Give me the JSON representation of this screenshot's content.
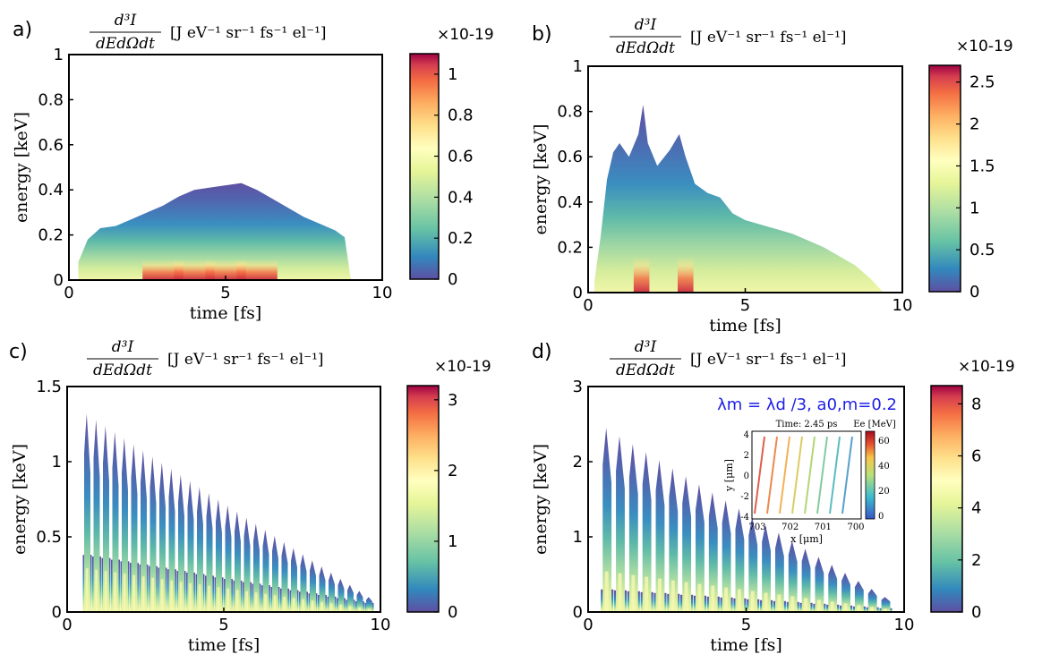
{
  "chart_data": [
    {
      "type": "heatmap",
      "panel_label": "a)",
      "title_frac": {
        "numerator": "d³I",
        "denominator": "dEdΩdt"
      },
      "title": "[J eV⁻¹ sr⁻¹ fs⁻¹ el⁻¹]",
      "xlabel": "time [fs]",
      "ylabel": "energy [keV]",
      "xlim": [
        0,
        10
      ],
      "ylim": [
        0,
        1
      ],
      "xticks": [
        "0",
        "5",
        "10"
      ],
      "yticks": [
        "0",
        "0.2",
        "0.4",
        "0.6",
        "0.8",
        "1"
      ],
      "colorbar": {
        "min": 0,
        "max": 1.1,
        "scale": "×10-19",
        "ticks": [
          "0",
          "0.2",
          "0.4",
          "0.6",
          "0.8",
          "1"
        ]
      },
      "envelope": {
        "t": [
          0.3,
          0.6,
          1.0,
          1.5,
          2.0,
          2.5,
          3.0,
          3.5,
          4.0,
          4.5,
          5.0,
          5.5,
          6.0,
          6.5,
          7.0,
          7.5,
          8.0,
          8.5,
          8.8,
          9.0
        ],
        "e_max": [
          0.08,
          0.18,
          0.23,
          0.24,
          0.27,
          0.3,
          0.33,
          0.37,
          0.4,
          0.41,
          0.42,
          0.43,
          0.4,
          0.36,
          0.32,
          0.28,
          0.25,
          0.22,
          0.19,
          0.0
        ]
      }
    },
    {
      "type": "heatmap",
      "panel_label": "b)",
      "title_frac": {
        "numerator": "d³I",
        "denominator": "dEdΩdt"
      },
      "title": "[J eV⁻¹ sr⁻¹ fs⁻¹ el⁻¹]",
      "xlabel": "time [fs]",
      "ylabel": "energy [keV]",
      "xlim": [
        0,
        10
      ],
      "ylim": [
        0,
        1
      ],
      "xticks": [
        "0",
        "5",
        "10"
      ],
      "yticks": [
        "0",
        "0.2",
        "0.4",
        "0.6",
        "0.8",
        "1"
      ],
      "colorbar": {
        "min": 0,
        "max": 2.7,
        "scale": "×10-19",
        "ticks": [
          "0",
          "0.5",
          "1",
          "1.5",
          "2",
          "2.5"
        ]
      },
      "envelope": {
        "t": [
          0.2,
          0.4,
          0.6,
          0.8,
          1.0,
          1.3,
          1.6,
          1.75,
          1.9,
          2.2,
          2.6,
          2.9,
          3.1,
          3.4,
          3.8,
          4.2,
          4.6,
          5.0,
          5.5,
          6.0,
          6.5,
          7.0,
          7.5,
          8.0,
          8.5,
          9.0,
          9.4
        ],
        "e_max": [
          0.05,
          0.25,
          0.5,
          0.62,
          0.66,
          0.6,
          0.7,
          0.83,
          0.66,
          0.56,
          0.63,
          0.7,
          0.6,
          0.48,
          0.44,
          0.42,
          0.35,
          0.32,
          0.3,
          0.28,
          0.26,
          0.23,
          0.2,
          0.16,
          0.12,
          0.06,
          0.0
        ]
      },
      "peaks_t": [
        1.7,
        3.1
      ]
    },
    {
      "type": "heatmap",
      "panel_label": "c)",
      "title_frac": {
        "numerator": "d³I",
        "denominator": "dEdΩdt"
      },
      "title": "[J eV⁻¹ sr⁻¹ fs⁻¹ el⁻¹]",
      "xlabel": "time [fs]",
      "ylabel": "energy [keV]",
      "xlim": [
        0,
        10
      ],
      "ylim": [
        0,
        1.5
      ],
      "xticks": [
        "0",
        "5",
        "10"
      ],
      "yticks": [
        "0",
        "0.5",
        "1",
        "1.5"
      ],
      "colorbar": {
        "min": 0,
        "max": 3.2,
        "scale": "×10-19",
        "ticks": [
          "0",
          "1",
          "2",
          "3"
        ]
      },
      "pulses": {
        "start": 0.5,
        "period": 0.3,
        "count": 31,
        "peak_first": 1.32,
        "peak_last": 0.1,
        "base_first": 0.38,
        "base_last": 0.06
      }
    },
    {
      "type": "heatmap",
      "panel_label": "d)",
      "title_frac": {
        "numerator": "d³I",
        "denominator": "dEdΩdt"
      },
      "title": "[J eV⁻¹ sr⁻¹ fs⁻¹ el⁻¹]",
      "xlabel": "time [fs]",
      "ylabel": "energy [keV]",
      "xlim": [
        0,
        10
      ],
      "ylim": [
        0,
        3
      ],
      "xticks": [
        "0",
        "5",
        "10"
      ],
      "yticks": [
        "0",
        "1",
        "2",
        "3"
      ],
      "colorbar": {
        "min": 0,
        "max": 8.7,
        "scale": "×10-19",
        "ticks": [
          "0",
          "2",
          "4",
          "6",
          "8"
        ]
      },
      "pulses": {
        "start": 0.4,
        "period": 0.42,
        "count": 22,
        "peak_first": 2.45,
        "peak_last": 0.2,
        "base_first": 0.3,
        "base_last": 0.05
      },
      "annotation": "λm = λd /3, a0,m=0.2",
      "inset": {
        "title": "Time: 2.45 ps",
        "xlabel": "x [μm]",
        "ylabel": "y [μm]",
        "xticks": [
          "703",
          "702",
          "701",
          "700"
        ],
        "yticks": [
          "4",
          "2",
          "0",
          "-2",
          "-4"
        ],
        "colorbar_label": "Ee [MeV]",
        "colorbar_ticks": [
          "0",
          "20",
          "40",
          "60"
        ]
      }
    }
  ]
}
